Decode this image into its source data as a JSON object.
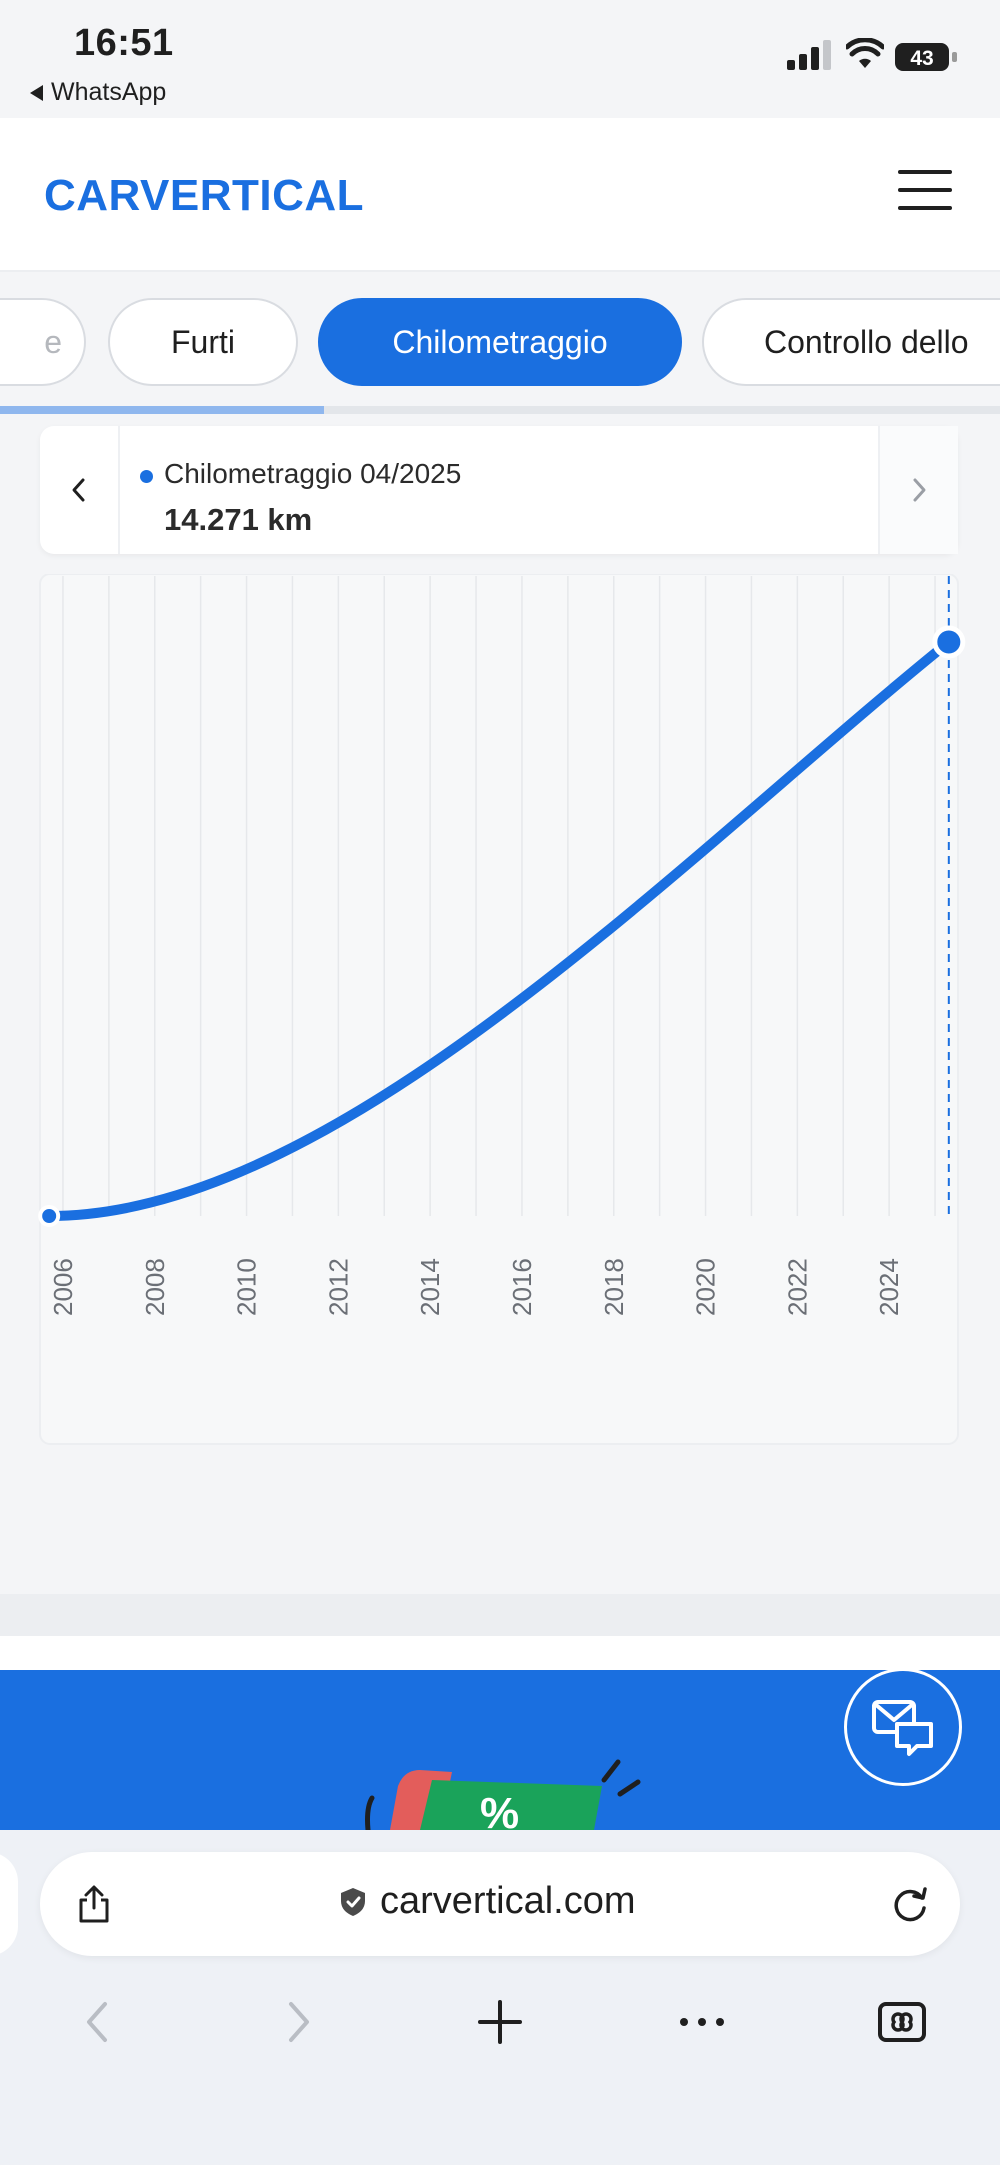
{
  "status_bar": {
    "time": "16:51",
    "back_app": "WhatsApp",
    "battery_level": "43"
  },
  "header": {
    "logo_text": "CARVERTICAL",
    "brand_color": "#1a6fe0"
  },
  "tabs": [
    {
      "label": "e"
    },
    {
      "label": "Furti"
    },
    {
      "label": "Chilometraggio",
      "active": true
    },
    {
      "label": "Controllo dello"
    }
  ],
  "tooltip": {
    "label": "Chilometraggio 04/2025",
    "value": "14.271 km"
  },
  "chart_data": {
    "type": "line",
    "x_tick_labels": [
      "2006",
      "2008",
      "2010",
      "2012",
      "2014",
      "2016",
      "2018",
      "2020",
      "2022",
      "2024"
    ],
    "xlim": [
      2005.5,
      2025.5
    ],
    "grid": true,
    "series": [
      {
        "points": [
          {
            "x": 2005.7,
            "y": 0
          },
          {
            "x": 2025.3,
            "y": 14271
          }
        ]
      }
    ],
    "highlighted_point": {
      "x": 2025.3,
      "y": 14271
    },
    "line_color": "#1a6fe0"
  },
  "browser": {
    "url": "carvertical.com"
  }
}
